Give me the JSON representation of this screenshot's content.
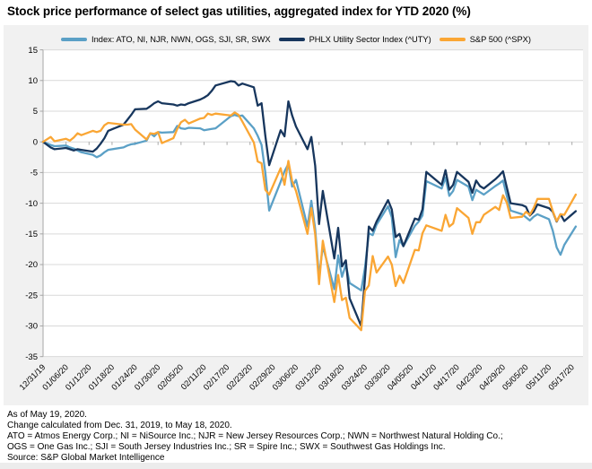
{
  "title": "Stock price performance of select gas utilities, aggregated index for YTD 2020 (%)",
  "colors": {
    "index_blue": "#5BA0C6",
    "uty_navy": "#17365D",
    "spx_orange": "#FAA634",
    "panel_bg": "#F1F1F1",
    "plot_bg": "#FFFFFF",
    "gridline": "#D9D9D9",
    "axis_line": "#A6A6A6"
  },
  "footer": {
    "lines": [
      "As of May 19, 2020.",
      "Change calculated from Dec. 31, 2019, to May 18, 2020.",
      "ATO = Atmos Energy Corp.; NI = NiSource Inc.; NJR = New Jersey Resources Corp.; NWN = Northwest Natural Holding Co.;",
      "OGS = One Gas Inc.; SJI = South Jersey Industries Inc.; SR = Spire Inc.; SWX = Southwest Gas Holdings Inc.",
      "Source: S&P Global Market Intelligence"
    ]
  },
  "chart_data": {
    "type": "line",
    "title": "Stock price performance of select gas utilities, aggregated index for YTD 2020 (%)",
    "grid": "horizontal",
    "legend_position": "top",
    "y_axis": {
      "min": -35,
      "max": 15,
      "step": 5,
      "unit": "%",
      "tick_labels": [
        "15",
        "10",
        "5",
        "0",
        "-5",
        "-10",
        "-15",
        "-20",
        "-25",
        "-30",
        "-35"
      ]
    },
    "x_axis": {
      "type": "date",
      "first": "12/31/19",
      "last": "05/18/20",
      "tick_labels": [
        "12/31/19",
        "01/06/20",
        "01/12/20",
        "01/18/20",
        "01/24/20",
        "01/30/20",
        "02/05/20",
        "02/11/20",
        "02/17/20",
        "02/23/20",
        "02/29/20",
        "03/06/20",
        "03/12/20",
        "03/18/20",
        "03/24/20",
        "03/30/20",
        "04/05/20",
        "04/11/20",
        "04/17/20",
        "04/23/20",
        "04/29/20",
        "05/05/20",
        "05/11/20",
        "05/17/20"
      ]
    },
    "dates": [
      "12/31/19",
      "01/02/20",
      "01/03/20",
      "01/06/20",
      "01/07/20",
      "01/08/20",
      "01/09/20",
      "01/10/20",
      "01/13/20",
      "01/14/20",
      "01/15/20",
      "01/16/20",
      "01/17/20",
      "01/21/20",
      "01/22/20",
      "01/23/20",
      "01/24/20",
      "01/27/20",
      "01/28/20",
      "01/29/20",
      "01/30/20",
      "01/31/20",
      "02/03/20",
      "02/04/20",
      "02/05/20",
      "02/06/20",
      "02/07/20",
      "02/10/20",
      "02/11/20",
      "02/12/20",
      "02/13/20",
      "02/14/20",
      "02/18/20",
      "02/19/20",
      "02/20/20",
      "02/21/20",
      "02/24/20",
      "02/25/20",
      "02/26/20",
      "02/27/20",
      "02/28/20",
      "03/02/20",
      "03/03/20",
      "03/04/20",
      "03/05/20",
      "03/06/20",
      "03/09/20",
      "03/10/20",
      "03/11/20",
      "03/12/20",
      "03/13/20",
      "03/16/20",
      "03/17/20",
      "03/18/20",
      "03/19/20",
      "03/20/20",
      "03/23/20",
      "03/24/20",
      "03/25/20",
      "03/26/20",
      "03/27/20",
      "03/30/20",
      "03/31/20",
      "04/01/20",
      "04/02/20",
      "04/03/20",
      "04/06/20",
      "04/07/20",
      "04/08/20",
      "04/09/20",
      "04/13/20",
      "04/14/20",
      "04/15/20",
      "04/16/20",
      "04/17/20",
      "04/20/20",
      "04/21/20",
      "04/22/20",
      "04/23/20",
      "04/24/20",
      "04/27/20",
      "04/28/20",
      "04/29/20",
      "04/30/20",
      "05/01/20",
      "05/04/20",
      "05/05/20",
      "05/06/20",
      "05/07/20",
      "05/08/20",
      "05/11/20",
      "05/12/20",
      "05/13/20",
      "05/14/20",
      "05/15/20",
      "05/18/20"
    ],
    "series": [
      {
        "name": "Index: ATO, NI, NJR, NWN, OGS, SJI, SR, SWX",
        "color": "#5BA0C6",
        "values": [
          0,
          -0.5,
          -0.7,
          -0.6,
          -0.9,
          -1.1,
          -1.4,
          -1.7,
          -2.1,
          -2.5,
          -2.2,
          -1.7,
          -1.3,
          -0.9,
          -0.6,
          -0.4,
          -0.3,
          0.2,
          1.4,
          0.9,
          1.6,
          1.5,
          1.6,
          2.6,
          2.2,
          2.1,
          2.3,
          2.2,
          1.9,
          2.0,
          2.1,
          2.2,
          4.2,
          4.4,
          4.2,
          4.3,
          2.2,
          1.0,
          -0.5,
          -5.0,
          -11.2,
          -6.5,
          -4.8,
          -3.6,
          -7.3,
          -6.2,
          -13.8,
          -9.6,
          -14.2,
          -22.0,
          -17.0,
          -24.0,
          -18.5,
          -22.0,
          -20.0,
          -23.0,
          -24.2,
          -20.5,
          -14.9,
          -15.2,
          -13.5,
          -10.5,
          -12.3,
          -18.8,
          -16.0,
          -17.0,
          -13.7,
          -13.0,
          -12.0,
          -6.4,
          -7.6,
          -5.8,
          -8.8,
          -8.0,
          -6.2,
          -7.3,
          -9.5,
          -7.8,
          -8.2,
          -8.6,
          -7.2,
          -6.8,
          -6.3,
          -8.8,
          -11.2,
          -11.8,
          -12.3,
          -12.8,
          -12.2,
          -11.8,
          -12.6,
          -14.5,
          -17.2,
          -18.4,
          -16.8,
          -13.8
        ]
      },
      {
        "name": "PHLX Utility Sector Index (^UTY)",
        "color": "#17365D",
        "values": [
          0,
          -0.9,
          -1.2,
          -1.0,
          -1.2,
          -1.4,
          -1.2,
          -1.3,
          -1.6,
          -1.1,
          -0.3,
          0.6,
          1.8,
          2.8,
          3.6,
          4.4,
          5.3,
          5.4,
          5.8,
          6.3,
          6.6,
          6.3,
          6.1,
          5.9,
          6.1,
          6.0,
          6.3,
          6.9,
          7.2,
          7.6,
          8.3,
          9.2,
          9.9,
          9.8,
          9.2,
          9.5,
          8.9,
          5.9,
          6.3,
          1.0,
          -3.8,
          1.9,
          0.9,
          6.6,
          4.3,
          2.5,
          -1.2,
          0.8,
          -3.9,
          -13.4,
          -8.0,
          -19.0,
          -14.0,
          -20.3,
          -19.3,
          -25.5,
          -30.0,
          -22.2,
          -13.8,
          -14.5,
          -13.0,
          -9.5,
          -11.0,
          -15.5,
          -15.0,
          -17.0,
          -12.5,
          -12.7,
          -11.0,
          -4.9,
          -7.0,
          -4.6,
          -7.8,
          -7.0,
          -4.9,
          -6.5,
          -8.3,
          -6.3,
          -7.2,
          -7.6,
          -6.1,
          -5.5,
          -4.8,
          -7.4,
          -10.0,
          -10.3,
          -10.6,
          -12.0,
          -11.4,
          -10.2,
          -10.8,
          -11.4,
          -13.0,
          -11.8,
          -12.9,
          -11.3
        ]
      },
      {
        "name": "S&P 500 (^SPX)",
        "color": "#FAA634",
        "values": [
          0,
          0.8,
          0.1,
          0.5,
          0.2,
          0.7,
          1.4,
          1.1,
          1.8,
          1.6,
          1.8,
          2.7,
          3.1,
          2.8,
          2.8,
          2.9,
          2.0,
          0.4,
          1.4,
          1.3,
          1.6,
          -0.2,
          0.6,
          2.1,
          3.2,
          3.6,
          3.0,
          3.8,
          3.9,
          4.6,
          4.4,
          4.6,
          4.3,
          4.8,
          4.4,
          3.3,
          -0.1,
          -3.2,
          -3.5,
          -7.8,
          -8.6,
          -4.3,
          -7.0,
          -3.1,
          -6.4,
          -8.0,
          -15.0,
          -10.8,
          -15.1,
          -23.2,
          -16.1,
          -26.1,
          -21.7,
          -25.8,
          -25.4,
          -28.7,
          -30.7,
          -24.3,
          -23.4,
          -18.6,
          -21.3,
          -18.7,
          -20.0,
          -23.5,
          -21.8,
          -23.0,
          -17.6,
          -17.7,
          -14.9,
          -13.6,
          -14.5,
          -11.9,
          -13.8,
          -13.3,
          -10.8,
          -12.4,
          -15.0,
          -13.1,
          -13.1,
          -11.9,
          -10.6,
          -11.1,
          -8.7,
          -9.9,
          -12.4,
          -12.2,
          -11.4,
          -11.9,
          -10.8,
          -9.3,
          -9.3,
          -11.3,
          -12.9,
          -11.8,
          -11.9,
          -8.6
        ]
      }
    ]
  }
}
